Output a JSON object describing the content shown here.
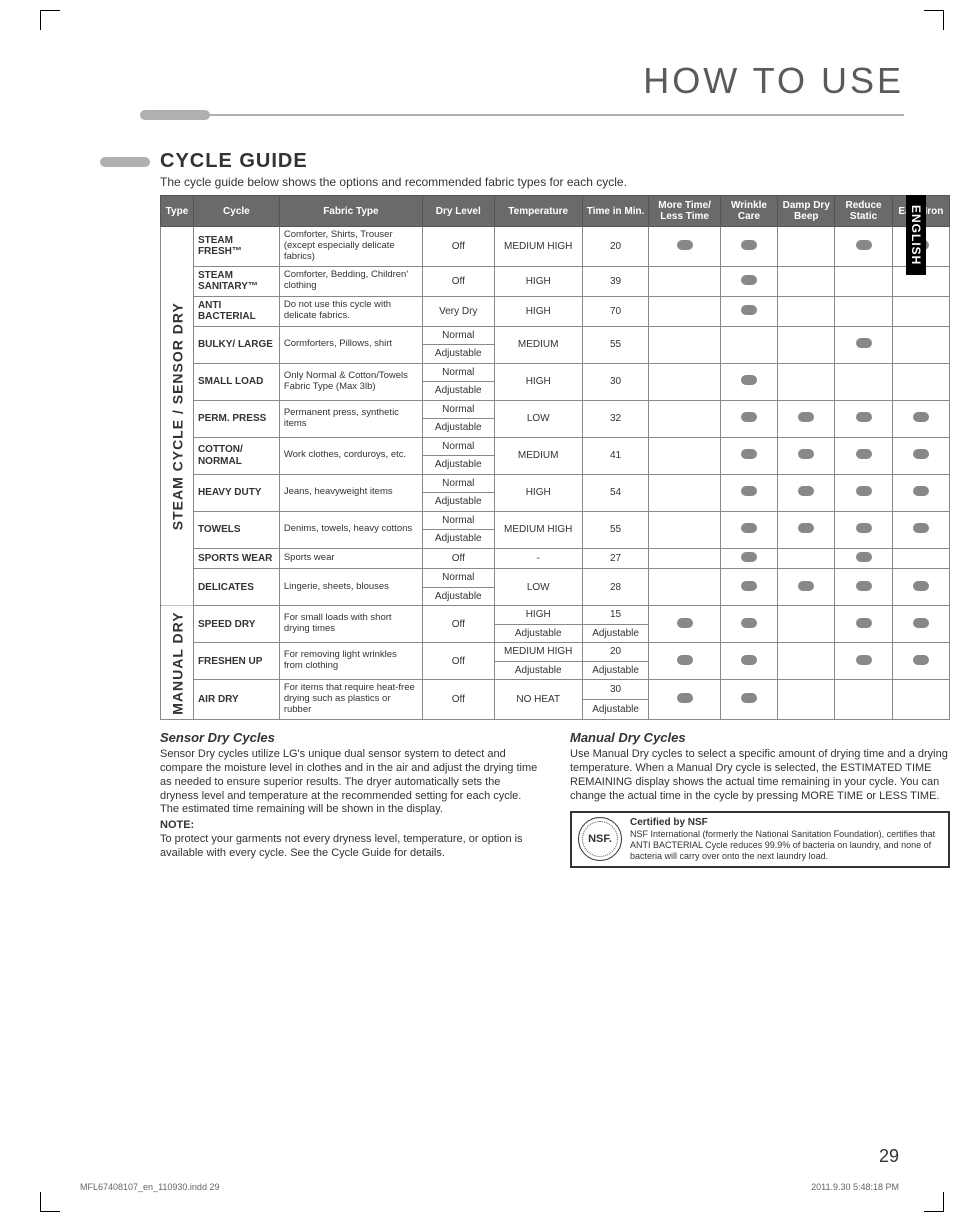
{
  "page": {
    "title": "HOW TO USE",
    "side_tab": "ENGLISH",
    "number": "29"
  },
  "section": {
    "title": "CYCLE GUIDE",
    "subtitle": "The cycle guide below shows the options and recommended fabric types for each cycle."
  },
  "table": {
    "headers": [
      "Type",
      "Cycle",
      "Fabric Type",
      "Dry Level",
      "Temperature",
      "Time in Min.",
      "More Time/ Less Time",
      "Wrinkle Care",
      "Damp Dry Beep",
      "Reduce Static",
      "Easy Iron"
    ],
    "type_labels": {
      "steam": "STEAM CYCLE / SENSOR DRY",
      "manual": "MANUAL DRY"
    },
    "rows": [
      {
        "group": "steam",
        "cycle": "STEAM FRESH™",
        "fabric": "Comforter, Shirts, Trouser (except especially delicate fabrics)",
        "dry": [
          "Off"
        ],
        "temp": "MEDIUM HIGH",
        "time": "20",
        "opts": {
          "more": true,
          "wrinkle": true,
          "damp": false,
          "reduce": true,
          "easy": true
        }
      },
      {
        "group": "steam",
        "cycle": "STEAM SANITARY™",
        "fabric": "Comforter, Bedding, Children' clothing",
        "dry": [
          "Off"
        ],
        "temp": "HIGH",
        "time": "39",
        "opts": {
          "more": false,
          "wrinkle": true,
          "damp": false,
          "reduce": false,
          "easy": false
        }
      },
      {
        "group": "steam",
        "cycle": "ANTI BACTERIAL",
        "fabric": "Do not use this cycle with delicate fabrics.",
        "dry": [
          "Very Dry"
        ],
        "temp": "HIGH",
        "time": "70",
        "opts": {
          "more": false,
          "wrinkle": true,
          "damp": false,
          "reduce": false,
          "easy": false
        }
      },
      {
        "group": "steam",
        "cycle": "BULKY/ LARGE",
        "fabric": "Cormforters, Pillows, shirt",
        "dry": [
          "Normal",
          "Adjustable"
        ],
        "temp": "MEDIUM",
        "time": "55",
        "opts": {
          "more": false,
          "wrinkle": false,
          "damp": false,
          "reduce": true,
          "easy": false
        }
      },
      {
        "group": "steam",
        "cycle": "SMALL LOAD",
        "fabric": "Only Normal & Cotton/Towels Fabric Type (Max 3lb)",
        "dry": [
          "Normal",
          "Adjustable"
        ],
        "temp": "HIGH",
        "time": "30",
        "opts": {
          "more": false,
          "wrinkle": true,
          "damp": false,
          "reduce": false,
          "easy": false
        }
      },
      {
        "group": "steam",
        "cycle": "PERM. PRESS",
        "fabric": "Permanent press, synthetic items",
        "dry": [
          "Normal",
          "Adjustable"
        ],
        "temp": "LOW",
        "time": "32",
        "opts": {
          "more": false,
          "wrinkle": true,
          "damp": true,
          "reduce": true,
          "easy": true
        }
      },
      {
        "group": "steam",
        "cycle": "COTTON/ NORMAL",
        "fabric": "Work clothes, corduroys, etc.",
        "dry": [
          "Normal",
          "Adjustable"
        ],
        "temp": "MEDIUM",
        "time": "41",
        "opts": {
          "more": false,
          "wrinkle": true,
          "damp": true,
          "reduce": true,
          "easy": true
        }
      },
      {
        "group": "steam",
        "cycle": "HEAVY DUTY",
        "fabric": "Jeans, heavyweight items",
        "dry": [
          "Normal",
          "Adjustable"
        ],
        "temp": "HIGH",
        "time": "54",
        "opts": {
          "more": false,
          "wrinkle": true,
          "damp": true,
          "reduce": true,
          "easy": true
        }
      },
      {
        "group": "steam",
        "cycle": "TOWELS",
        "fabric": "Denims, towels, heavy cottons",
        "dry": [
          "Normal",
          "Adjustable"
        ],
        "temp": "MEDIUM HIGH",
        "time": "55",
        "opts": {
          "more": false,
          "wrinkle": true,
          "damp": true,
          "reduce": true,
          "easy": true
        }
      },
      {
        "group": "steam",
        "cycle": "SPORTS WEAR",
        "fabric": "Sports wear",
        "dry": [
          "Off"
        ],
        "temp": "-",
        "time": "27",
        "opts": {
          "more": false,
          "wrinkle": true,
          "damp": false,
          "reduce": true,
          "easy": false
        }
      },
      {
        "group": "steam",
        "cycle": "DELICATES",
        "fabric": "Lingerie, sheets, blouses",
        "dry": [
          "Normal",
          "Adjustable"
        ],
        "temp": "LOW",
        "time": "28",
        "opts": {
          "more": false,
          "wrinkle": true,
          "damp": true,
          "reduce": true,
          "easy": true
        }
      },
      {
        "group": "manual",
        "cycle": "SPEED DRY",
        "fabric": "For small loads with short drying times",
        "dry": [
          "Off"
        ],
        "temp_rows": [
          "HIGH",
          "Adjustable"
        ],
        "time_rows": [
          "15",
          "Adjustable"
        ],
        "opts": {
          "more": true,
          "wrinkle": true,
          "damp": false,
          "reduce": true,
          "easy": true
        }
      },
      {
        "group": "manual",
        "cycle": "FRESHEN UP",
        "fabric": "For removing light wrinkles from clothing",
        "dry": [
          "Off"
        ],
        "temp_rows": [
          "MEDIUM HIGH",
          "Adjustable"
        ],
        "time_rows": [
          "20",
          "Adjustable"
        ],
        "opts": {
          "more": true,
          "wrinkle": true,
          "damp": false,
          "reduce": true,
          "easy": true
        }
      },
      {
        "group": "manual",
        "cycle": "AIR DRY",
        "fabric": "For items that require heat-free drying such as plastics or rubber",
        "dry": [
          "Off"
        ],
        "temp_rows": [
          "NO HEAT"
        ],
        "time_rows": [
          "30",
          "Adjustable"
        ],
        "opts": {
          "more": true,
          "wrinkle": true,
          "damp": false,
          "reduce": false,
          "easy": false
        }
      }
    ]
  },
  "bottom": {
    "sensor_title": "Sensor Dry Cycles",
    "sensor_text": "Sensor Dry cycles utilize LG's unique dual sensor system to detect and compare the moisture level in clothes and in the air and adjust the drying time as needed to ensure superior results. The dryer automatically sets the dryness level and temperature at the recommended setting for each cycle. The estimated time remaining will be shown in the display.",
    "note_label": "NOTE:",
    "note_text": "To protect your garments not every dryness level, temperature, or option is available with every cycle. See the Cycle Guide for details.",
    "manual_title": "Manual Dry Cycles",
    "manual_text": "Use Manual Dry cycles to select a specific amount of drying time and a drying temperature. When a Manual Dry cycle is selected, the ESTIMATED TIME REMAINING display shows the actual time remaining in your cycle. You can change the actual time in the cycle by pressing MORE TIME or LESS TIME.",
    "nsf_badge": "NSF.",
    "nsf_title": "Certified by NSF",
    "nsf_text": "NSF International (formerly the National Sanitation Foundation), certifies that ANTI BACTERIAL Cycle reduces 99.9% of bacteria on laundry, and none of bacteria will carry over onto the next laundry load."
  },
  "footer": {
    "left": "MFL67408107_en_110930.indd   29",
    "right": "2011.9.30   5:48:18 PM"
  }
}
